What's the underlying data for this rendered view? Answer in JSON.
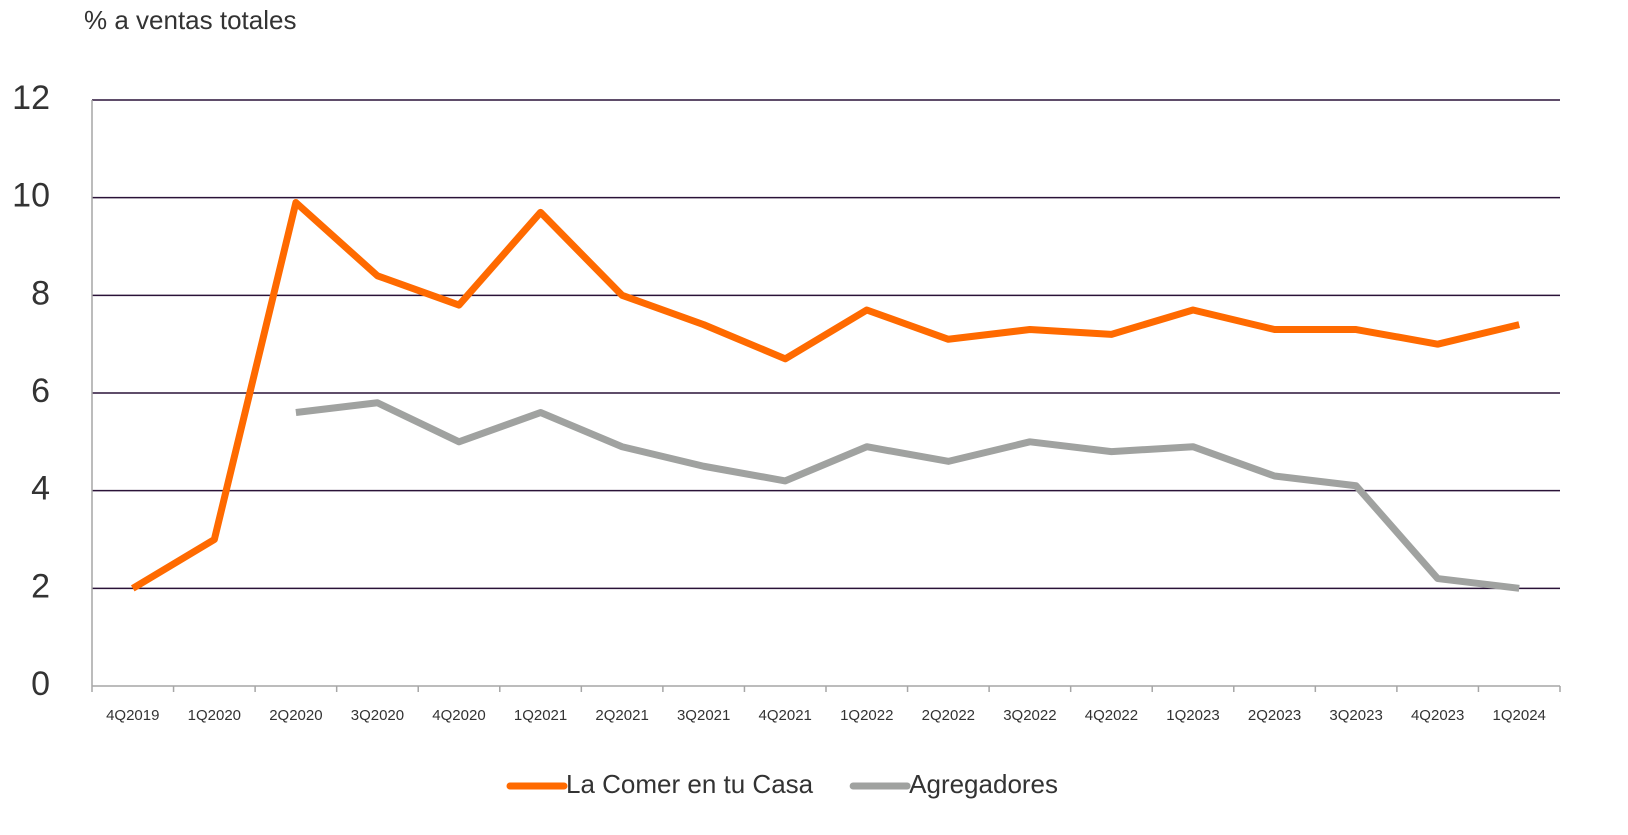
{
  "chart_data": {
    "type": "line",
    "ylabel": "% a ventas totales",
    "categories": [
      "4Q2019",
      "1Q2020",
      "2Q2020",
      "3Q2020",
      "4Q2020",
      "1Q2021",
      "2Q2021",
      "3Q2021",
      "4Q2021",
      "1Q2022",
      "2Q2022",
      "3Q2022",
      "4Q2022",
      "1Q2023",
      "2Q2023",
      "3Q2023",
      "4Q2023",
      "1Q2024"
    ],
    "series": [
      {
        "name": "La Comer en tu Casa",
        "color": "#ff6a00",
        "values": [
          2.0,
          3.0,
          9.9,
          8.4,
          7.8,
          9.7,
          8.0,
          7.4,
          6.7,
          7.7,
          7.1,
          7.3,
          7.2,
          7.7,
          7.3,
          7.3,
          7.0,
          7.4
        ]
      },
      {
        "name": "Agregadores",
        "color": "#a0a2a0",
        "values": [
          null,
          null,
          5.6,
          5.8,
          5.0,
          5.6,
          4.9,
          4.5,
          4.2,
          4.9,
          4.6,
          5.0,
          4.8,
          4.9,
          4.3,
          4.1,
          2.2,
          2.0
        ]
      }
    ],
    "ylim": [
      0,
      12
    ],
    "yticks": [
      0,
      2,
      4,
      6,
      8,
      10,
      12
    ],
    "grid": true,
    "legend": "bottom"
  }
}
